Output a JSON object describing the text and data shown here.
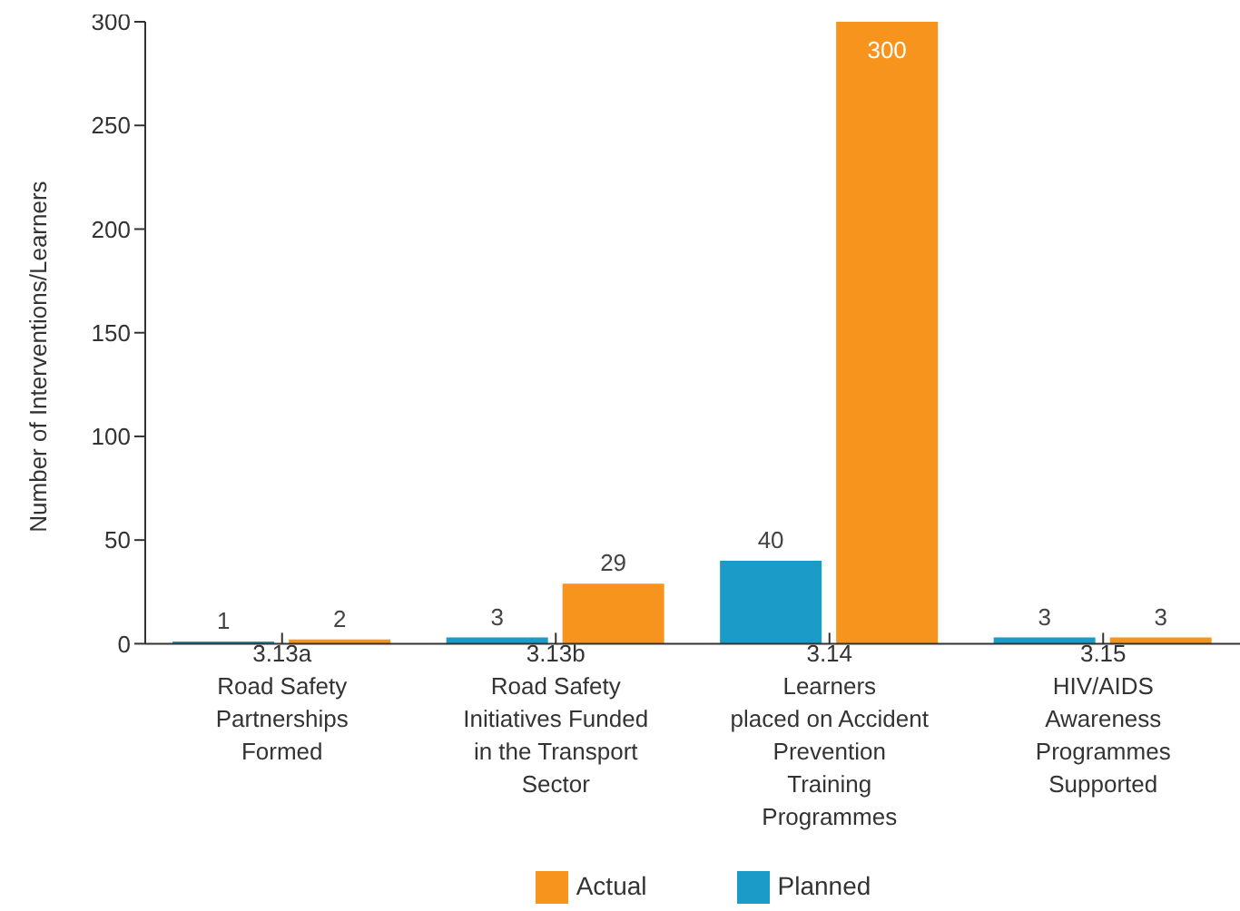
{
  "chart_data": {
    "type": "bar",
    "ylabel": "Number of Interventions/Learners",
    "categories": [
      "3.13a\nRoad Safety\nPartnerships\nFormed",
      "3.13b\nRoad Safety\nInitiatives Funded\nin the Transport\nSector",
      "3.14\nLearners\nplaced on Accident\nPrevention\nTraining\nProgrammes",
      "3.15\nHIV/AIDS\nAwareness\nProgrammes\nSupported"
    ],
    "series": [
      {
        "name": "Planned",
        "color": "#1b9bc8",
        "values": [
          1,
          3,
          40,
          3
        ]
      },
      {
        "name": "Actual",
        "color": "#f7941d",
        "values": [
          2,
          29,
          300,
          3
        ]
      }
    ],
    "ylim": [
      0,
      300
    ],
    "yticks": [
      0,
      50,
      100,
      150,
      200,
      250,
      300
    ],
    "grid": false,
    "legend": "bottom",
    "data_labels": true
  }
}
